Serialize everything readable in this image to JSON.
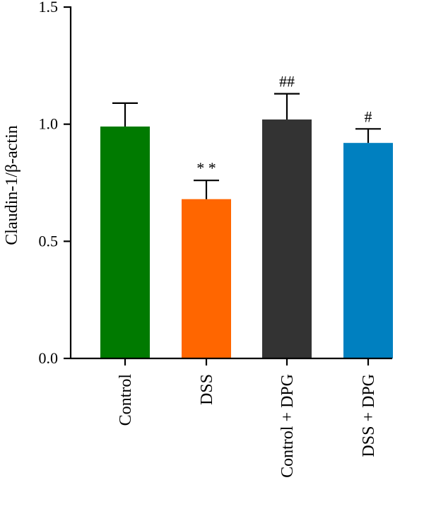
{
  "chart_data": {
    "type": "bar",
    "categories": [
      "Control",
      "DSS",
      "Control + DPG",
      "DSS + DPG"
    ],
    "values": [
      0.99,
      0.68,
      1.02,
      0.92
    ],
    "errors": [
      0.1,
      0.08,
      0.11,
      0.06
    ],
    "colors": [
      "#007a00",
      "#ff6600",
      "#333333",
      "#0080c0"
    ],
    "annotations": [
      "",
      "**",
      "##",
      "#"
    ],
    "title": "",
    "xlabel": "",
    "ylabel": "Claudin-1/β-actin",
    "ylim": [
      0,
      1.5
    ],
    "yticks": [
      0.0,
      0.5,
      1.0,
      1.5
    ],
    "ytick_labels": [
      "0.0",
      "0.5",
      "1.0",
      "1.5"
    ],
    "grid": false,
    "legend": "none"
  }
}
